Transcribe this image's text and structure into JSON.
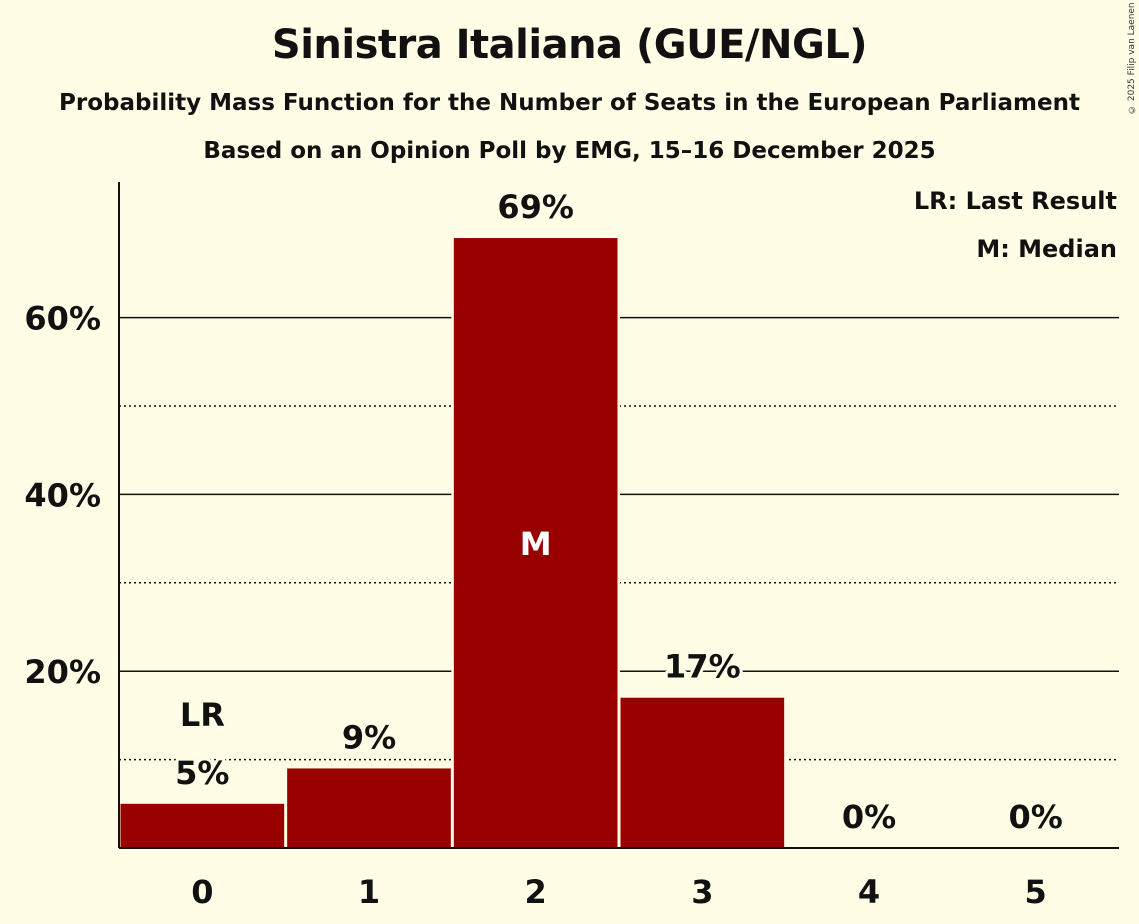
{
  "chart_data": {
    "type": "bar",
    "title": "Sinistra Italiana (GUE/NGL)",
    "subtitle": "Probability Mass Function for the Number of Seats in the European Parliament",
    "subtitle2": "Based on an Opinion Poll by EMG, 15–16 December 2025",
    "copyright": "© 2025 Filip van Laenen",
    "categories": [
      "0",
      "1",
      "2",
      "3",
      "4",
      "5"
    ],
    "values": [
      5,
      9,
      69,
      17,
      0,
      0
    ],
    "value_labels": [
      "5%",
      "9%",
      "69%",
      "17%",
      "0%",
      "0%"
    ],
    "ylim": [
      0,
      75
    ],
    "yticks_major": [
      20,
      40,
      60
    ],
    "ytick_labels": [
      "20%",
      "40%",
      "60%"
    ],
    "yticks_minor": [
      10,
      30,
      50
    ],
    "last_result_index": 0,
    "last_result_marker": "LR",
    "median_index": 2,
    "median_marker": "M",
    "legend": [
      "LR: Last Result",
      "M: Median"
    ],
    "bar_color": "#990000",
    "background_color": "#fffde6",
    "xlabel": "",
    "ylabel": ""
  }
}
